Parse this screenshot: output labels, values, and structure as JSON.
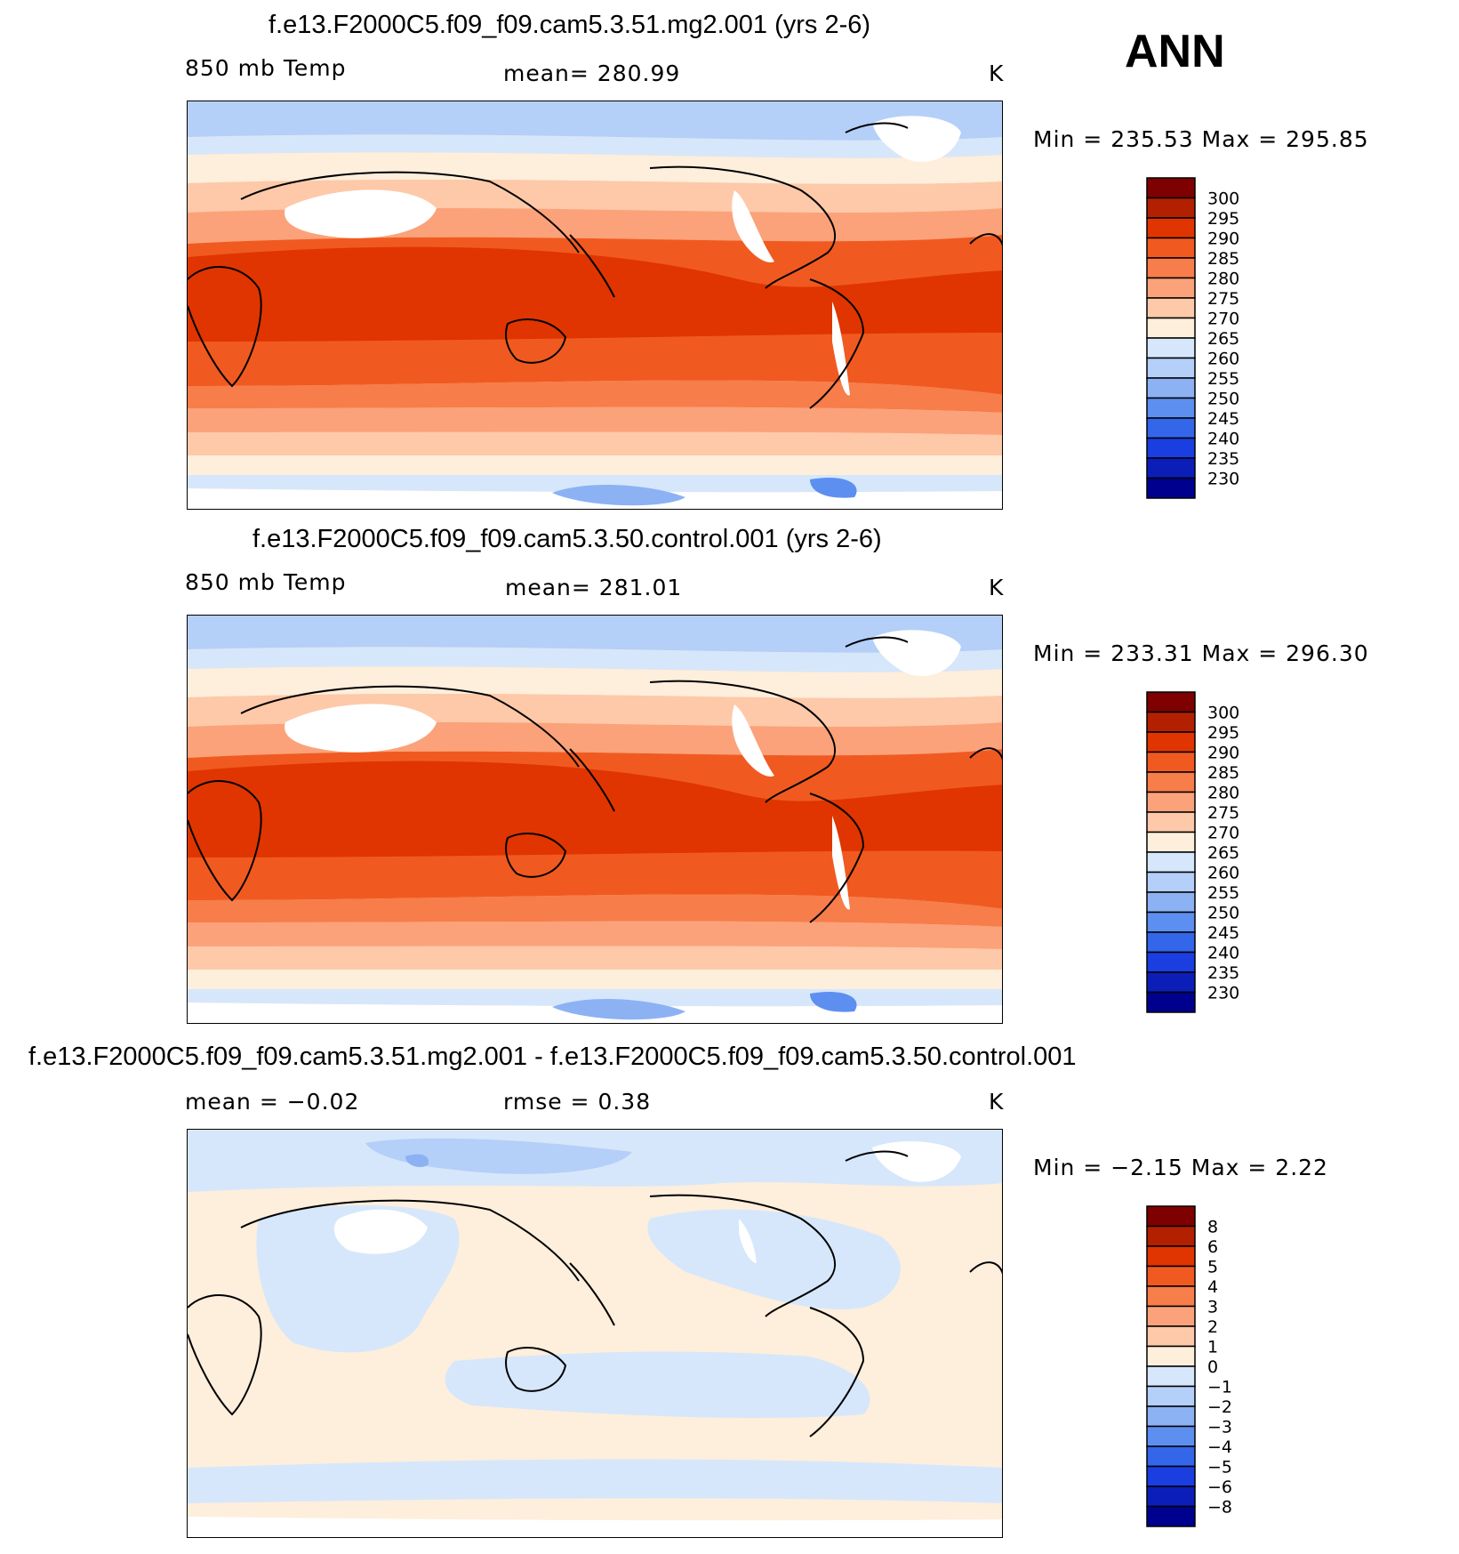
{
  "page": {
    "season": "ANN"
  },
  "panels": [
    {
      "title": "f.e13.F2000C5.f09_f09.cam5.3.51.mg2.001 (yrs 2-6)",
      "left_label": "850 mb Temp",
      "mid_label": "mean=  280.99",
      "right_label": "K",
      "minmax": "Min  =  235.53  Max  =  295.85",
      "kind": "abs"
    },
    {
      "title": "f.e13.F2000C5.f09_f09.cam5.3.50.control.001 (yrs 2-6)",
      "left_label": "850 mb Temp",
      "mid_label": "mean=  281.01",
      "right_label": "K",
      "minmax": "Min  =  233.31  Max  =  296.30",
      "kind": "abs"
    },
    {
      "title": "f.e13.F2000C5.f09_f09.cam5.3.51.mg2.001 - f.e13.F2000C5.f09_f09.cam5.3.50.control.001",
      "left_label": "mean  =    −0.02",
      "mid_label": "rmse  =     0.38",
      "right_label": "K",
      "minmax": "Min  =    −2.15  Max  =     2.22",
      "kind": "diff"
    }
  ],
  "chart_data": [
    {
      "type": "heatmap",
      "title": "f.e13.F2000C5.f09_f09.cam5.3.51.mg2.001 (yrs 2-6)",
      "variable": "850 mb Temp",
      "units": "K",
      "mean": 280.99,
      "min": 235.53,
      "max": 295.85,
      "colorbar_levels": [
        "300",
        "295",
        "290",
        "285",
        "280",
        "275",
        "270",
        "265",
        "260",
        "255",
        "250",
        "245",
        "240",
        "235",
        "230"
      ]
    },
    {
      "type": "heatmap",
      "title": "f.e13.F2000C5.f09_f09.cam5.3.50.control.001 (yrs 2-6)",
      "variable": "850 mb Temp",
      "units": "K",
      "mean": 281.01,
      "min": 233.31,
      "max": 296.3,
      "colorbar_levels": [
        "300",
        "295",
        "290",
        "285",
        "280",
        "275",
        "270",
        "265",
        "260",
        "255",
        "250",
        "245",
        "240",
        "235",
        "230"
      ]
    },
    {
      "type": "heatmap",
      "title": "f.e13.F2000C5.f09_f09.cam5.3.51.mg2.001 - f.e13.F2000C5.f09_f09.cam5.3.50.control.001",
      "units": "K",
      "mean": -0.02,
      "rmse": 0.38,
      "min": -2.15,
      "max": 2.22,
      "colorbar_levels": [
        "8",
        "6",
        "5",
        "4",
        "3",
        "2",
        "1",
        "0",
        "−1",
        "−2",
        "−3",
        "−4",
        "−5",
        "−6",
        "−8"
      ]
    }
  ],
  "colors": {
    "colorbar": [
      "#7f0000",
      "#b22000",
      "#e03500",
      "#f05a20",
      "#f77d4a",
      "#fba27a",
      "#fdc9a9",
      "#feeedc",
      "#d6e7fb",
      "#b4cff8",
      "#8cb2f4",
      "#5d8ff0",
      "#3466ea",
      "#1a3ee0",
      "#0b1fb8",
      "#00008f"
    ],
    "land_white": "#ffffff",
    "coast": "#000000"
  }
}
